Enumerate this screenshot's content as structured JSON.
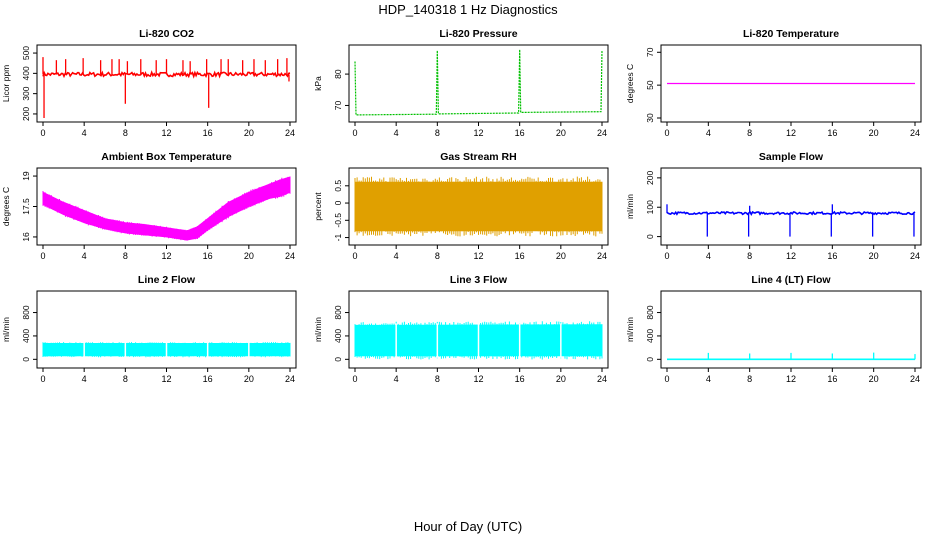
{
  "figure": {
    "title": "HDP_140318  1 Hz Diagnostics",
    "xlabel": "Hour of Day (UTC)"
  },
  "chart_data": [
    {
      "type": "line",
      "title": "Li-820 CO2",
      "ylabel": "Licor ppm",
      "xlim": [
        0,
        24
      ],
      "ylim": [
        180,
        520
      ],
      "yticks": [
        200,
        300,
        400,
        500
      ],
      "xticks": [
        0,
        4,
        8,
        12,
        16,
        20,
        24
      ],
      "color": "#ff0000",
      "series": [
        {
          "baseline": 395,
          "noise": 10,
          "spikes": [
            [
              0,
              480
            ],
            [
              0.1,
              180
            ],
            [
              1.3,
              465
            ],
            [
              2.2,
              470
            ],
            [
              3.9,
              475
            ],
            [
              5.6,
              465
            ],
            [
              6.7,
              470
            ],
            [
              7.4,
              470
            ],
            [
              8.0,
              250
            ],
            [
              8.2,
              460
            ],
            [
              9.5,
              470
            ],
            [
              11.0,
              465
            ],
            [
              12.0,
              470
            ],
            [
              13.6,
              465
            ],
            [
              14.3,
              460
            ],
            [
              15.9,
              470
            ],
            [
              16.1,
              230
            ],
            [
              17.3,
              470
            ],
            [
              18.0,
              470
            ],
            [
              19.4,
              465
            ],
            [
              20.5,
              470
            ],
            [
              21.6,
              465
            ],
            [
              22.8,
              470
            ],
            [
              23.7,
              475
            ],
            [
              23.9,
              360
            ]
          ]
        }
      ]
    },
    {
      "type": "line",
      "title": "Li-820 Pressure",
      "ylabel": "kPa",
      "xlim": [
        0,
        24
      ],
      "ylim": [
        66,
        88
      ],
      "yticks": [
        70,
        80
      ],
      "xticks": [
        0,
        4,
        8,
        12,
        16,
        20,
        24
      ],
      "color": "#00c000",
      "series": [
        {
          "points": [
            [
              0,
              84
            ],
            [
              0.1,
              67
            ],
            [
              7.9,
              67.2
            ],
            [
              8.0,
              87.5
            ],
            [
              8.1,
              67.3
            ],
            [
              15.9,
              67.6
            ],
            [
              16.0,
              87.8
            ],
            [
              16.1,
              67.8
            ],
            [
              23.9,
              68
            ],
            [
              24,
              87.5
            ]
          ]
        }
      ]
    },
    {
      "type": "line",
      "title": "Li-820 Temperature",
      "ylabel": "degrees C",
      "xlim": [
        0,
        24
      ],
      "ylim": [
        30,
        72
      ],
      "yticks": [
        30,
        50,
        70
      ],
      "xticks": [
        0,
        4,
        8,
        12,
        16,
        20,
        24
      ],
      "color": "#ff00ff",
      "series": [
        {
          "points": [
            [
              0,
              51
            ],
            [
              24,
              51
            ]
          ]
        }
      ]
    },
    {
      "type": "area",
      "title": "Ambient Box Temperature",
      "ylabel": "degrees C",
      "xlim": [
        0,
        24
      ],
      "ylim": [
        15.8,
        19.2
      ],
      "yticks": [
        16.0,
        17.5,
        19.0
      ],
      "xticks": [
        0,
        4,
        8,
        12,
        16,
        20,
        24
      ],
      "color": "#ff00ff",
      "series": [
        {
          "upper": [
            [
              0,
              18.2
            ],
            [
              2,
              17.7
            ],
            [
              4,
              17.3
            ],
            [
              6,
              16.9
            ],
            [
              8,
              16.7
            ],
            [
              10,
              16.6
            ],
            [
              12,
              16.45
            ],
            [
              14,
              16.3
            ],
            [
              15,
              16.5
            ],
            [
              16,
              16.9
            ],
            [
              18,
              17.7
            ],
            [
              20,
              18.2
            ],
            [
              22,
              18.6
            ],
            [
              23,
              18.8
            ],
            [
              24,
              18.95
            ]
          ],
          "lower": [
            [
              0,
              17.6
            ],
            [
              2,
              17.1
            ],
            [
              4,
              16.7
            ],
            [
              6,
              16.4
            ],
            [
              8,
              16.2
            ],
            [
              10,
              16.1
            ],
            [
              12,
              16.0
            ],
            [
              14,
              15.85
            ],
            [
              15,
              15.95
            ],
            [
              16,
              16.35
            ],
            [
              18,
              17.0
            ],
            [
              20,
              17.5
            ],
            [
              22,
              17.9
            ],
            [
              23,
              18.0
            ],
            [
              24,
              18.2
            ]
          ]
        }
      ]
    },
    {
      "type": "area",
      "title": "Gas Stream RH",
      "ylabel": "percent",
      "xlim": [
        0,
        24
      ],
      "ylim": [
        -1.1,
        0.9
      ],
      "yticks": [
        -1.0,
        -0.5,
        0.0,
        0.5
      ],
      "xticks": [
        0,
        4,
        8,
        12,
        16,
        20,
        24
      ],
      "color": "#e0a000",
      "series": [
        {
          "upper": [
            [
              0,
              0.6
            ],
            [
              24,
              0.6
            ]
          ],
          "lower": [
            [
              0,
              -0.8
            ],
            [
              24,
              -0.8
            ]
          ]
        }
      ]
    },
    {
      "type": "line",
      "title": "Sample Flow",
      "ylabel": "ml/min",
      "xlim": [
        0,
        24
      ],
      "ylim": [
        -15,
        220
      ],
      "yticks": [
        0,
        100,
        200
      ],
      "xticks": [
        0,
        4,
        8,
        12,
        16,
        20,
        24
      ],
      "color": "#0000ff",
      "series": [
        {
          "baseline": 80,
          "noise": 4,
          "spikes": [
            [
              0,
              110
            ],
            [
              3.9,
              0
            ],
            [
              7.9,
              0
            ],
            [
              8.0,
              105
            ],
            [
              11.9,
              0
            ],
            [
              15.9,
              0
            ],
            [
              16.0,
              110
            ],
            [
              19.9,
              0
            ],
            [
              23.9,
              0
            ]
          ]
        }
      ]
    },
    {
      "type": "area",
      "title": "Line 2 Flow",
      "ylabel": "ml/min",
      "xlim": [
        0,
        24
      ],
      "ylim": [
        -80,
        1100
      ],
      "yticks": [
        0,
        400,
        800
      ],
      "xticks": [
        0,
        4,
        8,
        12,
        16,
        20,
        24
      ],
      "color": "#00ffff",
      "series": [
        {
          "upper": [
            [
              0,
              270
            ],
            [
              24,
              270
            ]
          ],
          "lower": [
            [
              0,
              60
            ],
            [
              24,
              60
            ]
          ],
          "gaps": [
            4,
            8,
            12,
            16,
            20
          ]
        }
      ]
    },
    {
      "type": "area",
      "title": "Line 3 Flow",
      "ylabel": "ml/min",
      "xlim": [
        0,
        24
      ],
      "ylim": [
        -80,
        1100
      ],
      "yticks": [
        0,
        400,
        800
      ],
      "xticks": [
        0,
        4,
        8,
        12,
        16,
        20,
        24
      ],
      "color": "#00ffff",
      "series": [
        {
          "upper": [
            [
              0,
              580
            ],
            [
              24,
              590
            ]
          ],
          "lower": [
            [
              0,
              60
            ],
            [
              24,
              60
            ]
          ],
          "gaps": [
            4,
            8,
            12,
            16,
            20
          ]
        }
      ]
    },
    {
      "type": "line",
      "title": "Line 4 (LT) Flow",
      "ylabel": "ml/min",
      "xlim": [
        0,
        24
      ],
      "ylim": [
        -80,
        1100
      ],
      "yticks": [
        0,
        400,
        800
      ],
      "xticks": [
        0,
        4,
        8,
        12,
        16,
        20,
        24
      ],
      "color": "#00ffff",
      "series": [
        {
          "baseline": 0,
          "noise": 0,
          "spikes": [
            [
              4,
              110
            ],
            [
              8,
              100
            ],
            [
              12,
              110
            ],
            [
              16,
              100
            ],
            [
              20,
              115
            ],
            [
              24,
              90
            ]
          ]
        }
      ]
    }
  ]
}
